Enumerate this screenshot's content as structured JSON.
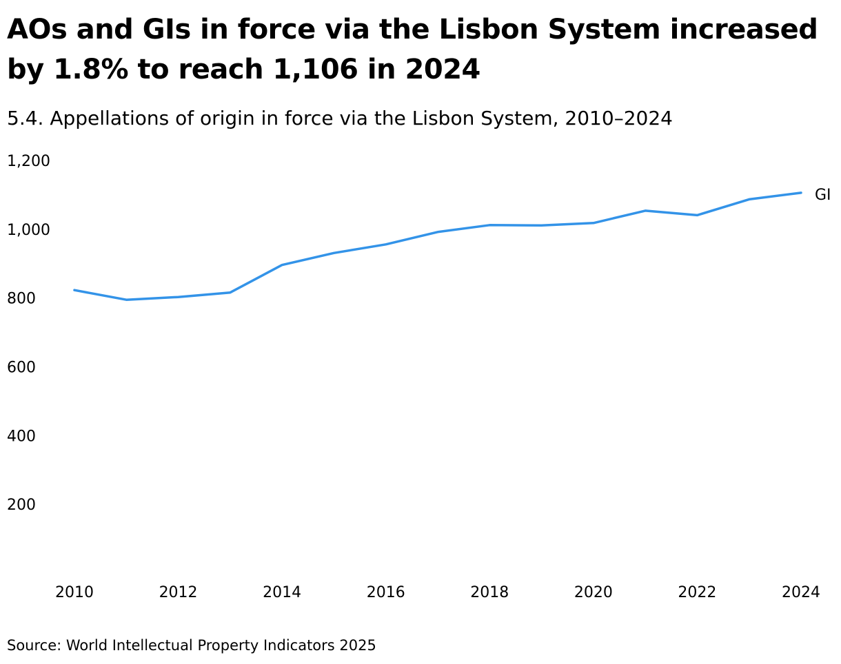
{
  "header": {
    "title": "AOs and GIs in force via the Lisbon System increased by 1.8% to reach 1,106 in 2024",
    "subtitle": "5.4. Appellations of origin in force via the Lisbon System, 2010–2024"
  },
  "footer": {
    "source": "Source: World Intellectual Property Indicators 2025"
  },
  "colors": {
    "series": "#3393e8"
  },
  "chart_data": {
    "type": "line",
    "title": "5.4. Appellations of origin in force via the Lisbon System, 2010–2024",
    "xlabel": "",
    "ylabel": "",
    "x": [
      2010,
      2011,
      2012,
      2013,
      2014,
      2015,
      2016,
      2017,
      2018,
      2019,
      2020,
      2021,
      2022,
      2023,
      2024
    ],
    "series": [
      {
        "name": "GI",
        "values": [
          823,
          795,
          803,
          816,
          896,
          931,
          956,
          992,
          1012,
          1011,
          1018,
          1054,
          1041,
          1087,
          1106
        ]
      }
    ],
    "x_ticks": [
      "2010",
      "2012",
      "2014",
      "2016",
      "2018",
      "2020",
      "2022",
      "2024"
    ],
    "y_ticks": [
      "200",
      "400",
      "600",
      "800",
      "1,000",
      "1,200"
    ],
    "xlim": [
      2010,
      2024
    ],
    "ylim": [
      0,
      1200
    ],
    "grid": false,
    "legend": "direct label at line end (right)"
  }
}
